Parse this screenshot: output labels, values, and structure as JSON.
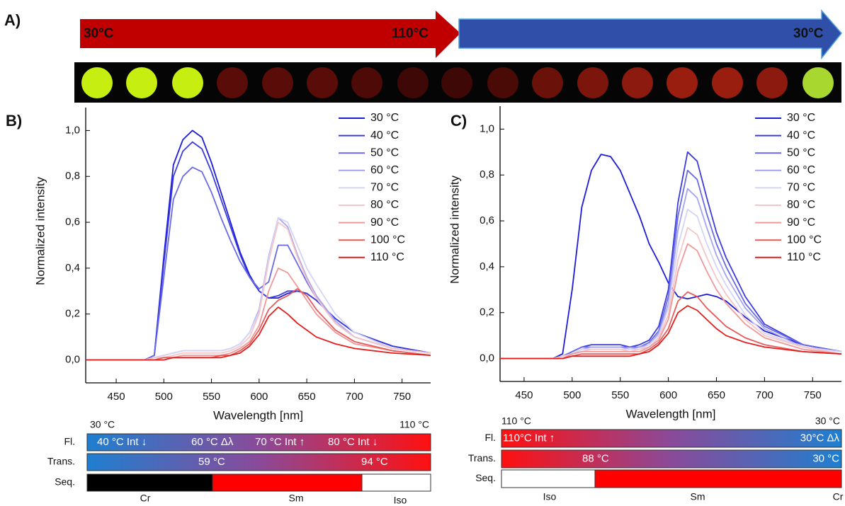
{
  "panel_a": {
    "label": "A)",
    "arrow_labels": [
      "30°C",
      "110°C",
      "30°C"
    ]
  },
  "chart_data": [
    {
      "type": "line",
      "panel_label": "B)",
      "xlabel": "Wavelength [nm]",
      "ylabel": "Normalized intensity",
      "legend": "upper right",
      "xlim": [
        418,
        780
      ],
      "ylim": [
        -0.1,
        1.1
      ],
      "xticks": [
        450,
        500,
        550,
        600,
        650,
        700,
        750
      ],
      "yticks": [
        {
          "value": 0,
          "label": "0,0"
        },
        {
          "value": 0.2,
          "label": "0,2"
        },
        {
          "value": 0.4,
          "label": "0,4"
        },
        {
          "value": 0.6,
          "label": "0,6"
        },
        {
          "value": 0.8,
          "label": "0,8"
        },
        {
          "value": 1.0,
          "label": "1,0"
        }
      ],
      "x": [
        418,
        460,
        480,
        490,
        500,
        510,
        520,
        530,
        540,
        550,
        560,
        570,
        580,
        590,
        600,
        610,
        620,
        630,
        640,
        650,
        660,
        680,
        700,
        740,
        780
      ],
      "series": [
        {
          "name": "30 °C",
          "color": "#1c1cd8",
          "values": [
            0,
            0,
            0,
            0.02,
            0.45,
            0.85,
            0.96,
            1.0,
            0.97,
            0.86,
            0.73,
            0.6,
            0.47,
            0.37,
            0.3,
            0.27,
            0.27,
            0.29,
            0.3,
            0.29,
            0.26,
            0.18,
            0.12,
            0.06,
            0.03
          ]
        },
        {
          "name": "40 °C",
          "color": "#3a3adf",
          "values": [
            0,
            0,
            0,
            0.02,
            0.42,
            0.8,
            0.91,
            0.95,
            0.92,
            0.82,
            0.7,
            0.58,
            0.46,
            0.36,
            0.3,
            0.27,
            0.28,
            0.3,
            0.3,
            0.29,
            0.26,
            0.18,
            0.12,
            0.06,
            0.03
          ]
        },
        {
          "name": "50 °C",
          "color": "#6a6ae6",
          "values": [
            0,
            0,
            0,
            0.02,
            0.36,
            0.7,
            0.8,
            0.84,
            0.82,
            0.73,
            0.62,
            0.52,
            0.43,
            0.36,
            0.31,
            0.34,
            0.5,
            0.5,
            0.42,
            0.34,
            0.27,
            0.16,
            0.1,
            0.05,
            0.03
          ]
        },
        {
          "name": "60 °C",
          "color": "#a4a4f0",
          "values": [
            0,
            0,
            0,
            0.01,
            0.02,
            0.03,
            0.04,
            0.04,
            0.04,
            0.04,
            0.04,
            0.05,
            0.07,
            0.12,
            0.22,
            0.45,
            0.62,
            0.58,
            0.46,
            0.36,
            0.28,
            0.17,
            0.1,
            0.05,
            0.03
          ]
        },
        {
          "name": "70 °C",
          "color": "#d4d4f6",
          "values": [
            0,
            0,
            0,
            0.01,
            0.02,
            0.03,
            0.04,
            0.04,
            0.04,
            0.04,
            0.04,
            0.05,
            0.07,
            0.12,
            0.21,
            0.44,
            0.62,
            0.6,
            0.5,
            0.4,
            0.33,
            0.2,
            0.12,
            0.05,
            0.03
          ]
        },
        {
          "name": "80 °C",
          "color": "#f6c6c6",
          "values": [
            0,
            0,
            0,
            0.01,
            0.01,
            0.02,
            0.03,
            0.03,
            0.03,
            0.03,
            0.03,
            0.04,
            0.06,
            0.1,
            0.2,
            0.43,
            0.6,
            0.57,
            0.45,
            0.35,
            0.27,
            0.16,
            0.1,
            0.05,
            0.03
          ]
        },
        {
          "name": "90 °C",
          "color": "#f09898",
          "values": [
            0,
            0,
            0,
            0,
            0.01,
            0.01,
            0.02,
            0.02,
            0.02,
            0.02,
            0.02,
            0.03,
            0.05,
            0.08,
            0.15,
            0.3,
            0.4,
            0.38,
            0.32,
            0.26,
            0.2,
            0.12,
            0.07,
            0.04,
            0.02
          ]
        },
        {
          "name": "100 °C",
          "color": "#e85a5a",
          "values": [
            0,
            0,
            0,
            0,
            0.01,
            0.01,
            0.01,
            0.01,
            0.01,
            0.01,
            0.02,
            0.02,
            0.04,
            0.07,
            0.13,
            0.22,
            0.26,
            0.28,
            0.31,
            0.28,
            0.22,
            0.13,
            0.08,
            0.04,
            0.02
          ]
        },
        {
          "name": "110 °C",
          "color": "#e01e1e",
          "values": [
            0,
            0,
            0,
            0,
            0,
            0.01,
            0.01,
            0.01,
            0.01,
            0.01,
            0.01,
            0.02,
            0.03,
            0.06,
            0.11,
            0.19,
            0.23,
            0.2,
            0.16,
            0.13,
            0.1,
            0.07,
            0.05,
            0.03,
            0.02
          ]
        }
      ]
    },
    {
      "type": "line",
      "panel_label": "C)",
      "xlabel": "Wavelength [nm]",
      "ylabel": "Normalized intensity",
      "legend": "upper right",
      "xlim": [
        425,
        780
      ],
      "ylim": [
        -0.1,
        1.1
      ],
      "xticks": [
        450,
        500,
        550,
        600,
        650,
        700,
        750
      ],
      "yticks": [
        {
          "value": 0,
          "label": "0,0"
        },
        {
          "value": 0.2,
          "label": "0,2"
        },
        {
          "value": 0.4,
          "label": "0,4"
        },
        {
          "value": 0.6,
          "label": "0,6"
        },
        {
          "value": 0.8,
          "label": "0,8"
        },
        {
          "value": 1.0,
          "label": "1,0"
        }
      ],
      "x": [
        425,
        460,
        480,
        490,
        500,
        510,
        520,
        530,
        540,
        550,
        560,
        570,
        580,
        590,
        600,
        610,
        620,
        630,
        640,
        650,
        660,
        680,
        700,
        740,
        780
      ],
      "series": [
        {
          "name": "30 °C",
          "color": "#1c1cd8",
          "values": [
            0,
            0,
            0,
            0.02,
            0.3,
            0.66,
            0.82,
            0.89,
            0.88,
            0.82,
            0.72,
            0.62,
            0.5,
            0.42,
            0.33,
            0.27,
            0.26,
            0.27,
            0.28,
            0.27,
            0.25,
            0.18,
            0.12,
            0.06,
            0.03
          ]
        },
        {
          "name": "40 °C",
          "color": "#3a3adf",
          "values": [
            0,
            0,
            0,
            0.01,
            0.03,
            0.05,
            0.06,
            0.06,
            0.06,
            0.06,
            0.05,
            0.06,
            0.08,
            0.14,
            0.3,
            0.68,
            0.9,
            0.86,
            0.7,
            0.55,
            0.44,
            0.27,
            0.15,
            0.06,
            0.03
          ]
        },
        {
          "name": "50 °C",
          "color": "#6a6ae6",
          "values": [
            0,
            0,
            0,
            0.01,
            0.03,
            0.05,
            0.05,
            0.05,
            0.05,
            0.05,
            0.05,
            0.05,
            0.07,
            0.12,
            0.27,
            0.62,
            0.82,
            0.78,
            0.63,
            0.5,
            0.4,
            0.24,
            0.14,
            0.06,
            0.03
          ]
        },
        {
          "name": "60 °C",
          "color": "#a4a4f0",
          "values": [
            0,
            0,
            0,
            0.01,
            0.02,
            0.04,
            0.05,
            0.05,
            0.05,
            0.05,
            0.04,
            0.05,
            0.06,
            0.11,
            0.24,
            0.56,
            0.74,
            0.7,
            0.57,
            0.45,
            0.36,
            0.22,
            0.13,
            0.05,
            0.03
          ]
        },
        {
          "name": "70 °C",
          "color": "#d4d4f6",
          "values": [
            0,
            0,
            0,
            0.01,
            0.02,
            0.04,
            0.04,
            0.04,
            0.04,
            0.04,
            0.04,
            0.04,
            0.06,
            0.1,
            0.22,
            0.49,
            0.65,
            0.62,
            0.5,
            0.4,
            0.32,
            0.19,
            0.11,
            0.05,
            0.03
          ]
        },
        {
          "name": "80 °C",
          "color": "#f6c6c6",
          "values": [
            0,
            0,
            0,
            0.01,
            0.02,
            0.03,
            0.04,
            0.04,
            0.04,
            0.04,
            0.03,
            0.04,
            0.05,
            0.09,
            0.19,
            0.43,
            0.57,
            0.54,
            0.44,
            0.35,
            0.28,
            0.17,
            0.1,
            0.05,
            0.02
          ]
        },
        {
          "name": "90 °C",
          "color": "#f09898",
          "values": [
            0,
            0,
            0,
            0,
            0.02,
            0.03,
            0.03,
            0.03,
            0.03,
            0.03,
            0.03,
            0.03,
            0.05,
            0.08,
            0.17,
            0.38,
            0.5,
            0.47,
            0.38,
            0.3,
            0.24,
            0.15,
            0.09,
            0.04,
            0.02
          ]
        },
        {
          "name": "100 °C",
          "color": "#e85a5a",
          "values": [
            0,
            0,
            0,
            0,
            0.01,
            0.02,
            0.02,
            0.02,
            0.02,
            0.02,
            0.02,
            0.02,
            0.04,
            0.07,
            0.13,
            0.25,
            0.29,
            0.27,
            0.22,
            0.18,
            0.14,
            0.09,
            0.06,
            0.03,
            0.02
          ]
        },
        {
          "name": "110 °C",
          "color": "#e01e1e",
          "values": [
            0,
            0,
            0,
            0,
            0.01,
            0.01,
            0.01,
            0.01,
            0.01,
            0.01,
            0.01,
            0.02,
            0.03,
            0.06,
            0.11,
            0.2,
            0.23,
            0.21,
            0.17,
            0.13,
            0.1,
            0.07,
            0.05,
            0.03,
            0.02
          ]
        }
      ]
    }
  ],
  "bars": [
    {
      "range_labels": [
        "30 °C",
        "110 °C"
      ],
      "row_labels": [
        "Fl.",
        "Trans.",
        "Seq."
      ],
      "fl": [
        "40 °C Int ↓",
        "60 °C Δλ",
        "70 °C Int ↑",
        "80 °C Int ↓"
      ],
      "trans": [
        "59 °C",
        "94 °C"
      ],
      "seq": [
        "Cr",
        "Sm",
        "Iso"
      ]
    },
    {
      "range_labels": [
        "110 °C",
        "30 °C"
      ],
      "row_labels": [
        "Fl.",
        "Trans.",
        "Seq."
      ],
      "fl": [
        "110°C Int ↑",
        "30°C Δλ"
      ],
      "trans": [
        "88 °C",
        "30 °C"
      ],
      "seq": [
        "Iso",
        "Sm",
        "Cr"
      ]
    }
  ]
}
